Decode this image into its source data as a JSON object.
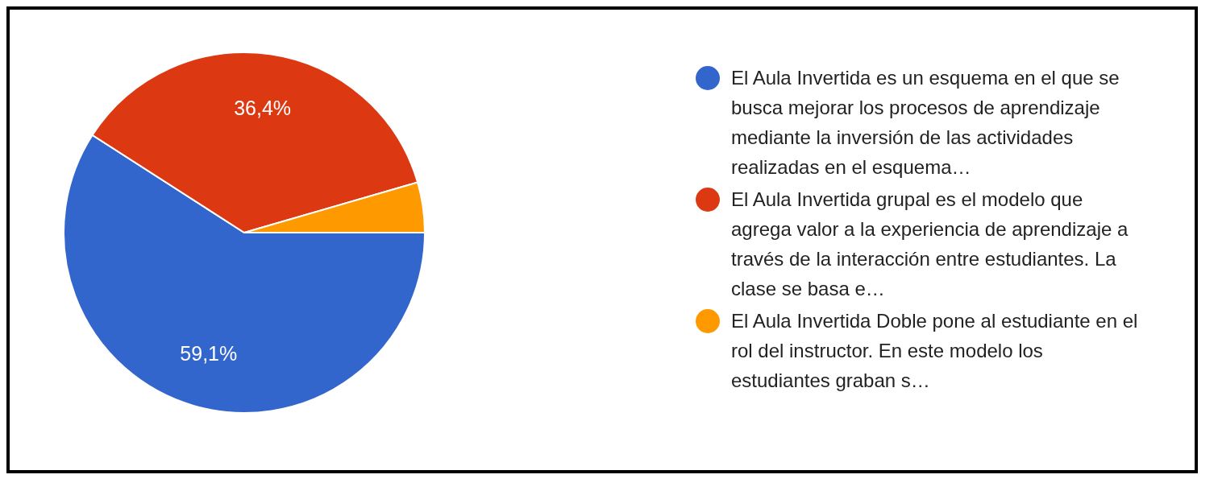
{
  "chart_data": {
    "type": "pie",
    "categories": [
      "El Aula Invertida es un esquema en el que se busca mejorar los procesos de aprendizaje mediante la inversión de las actividades realizadas en el esquema…",
      "El Aula Invertida grupal es el modelo que agrega valor a la experiencia de aprendizaje a través de la interacción entre estudiantes. La clase se basa e…",
      "El Aula Invertida Doble pone al estudiante en el rol del instructor. En este modelo los estudiantes graban s…"
    ],
    "values": [
      59.1,
      36.4,
      4.5
    ],
    "colors": [
      "#3366cc",
      "#dc3912",
      "#ff9900"
    ],
    "value_labels": [
      "59,1%",
      "36,4%",
      null
    ],
    "legend": "right"
  }
}
